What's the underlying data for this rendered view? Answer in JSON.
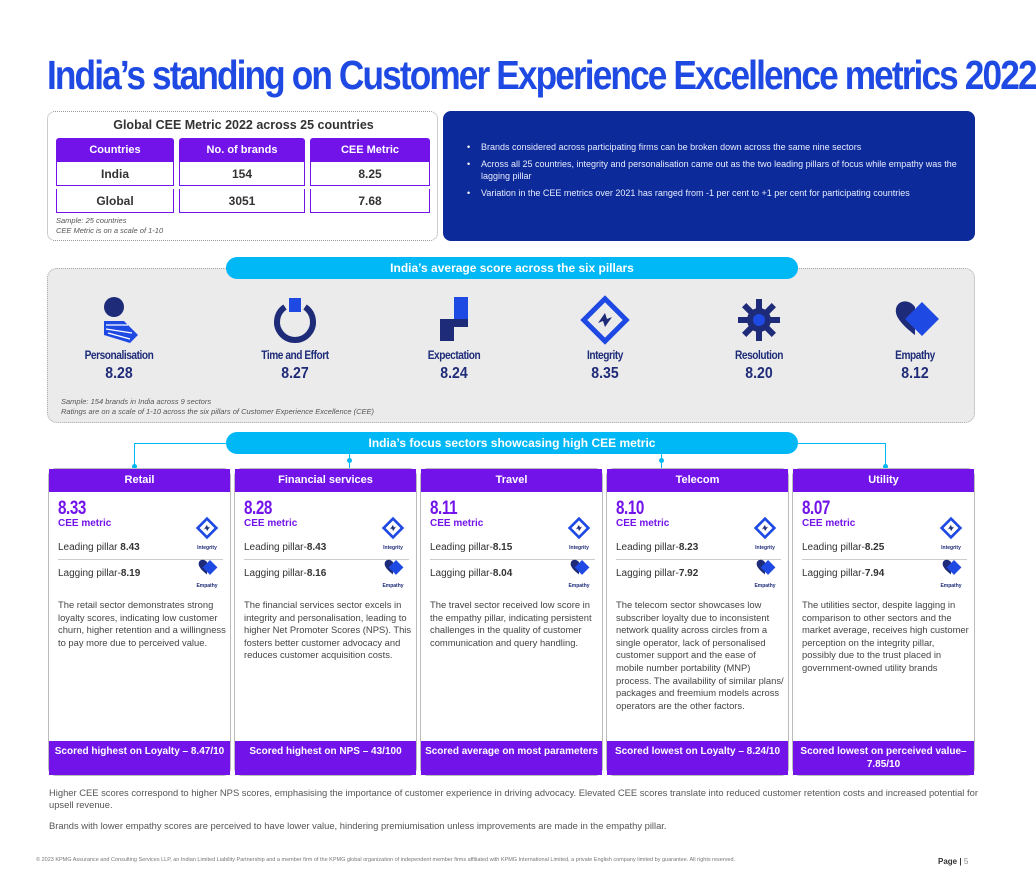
{
  "title": "India’s standing on Customer Experience Excellence metrics 2022",
  "global_table": {
    "title": "Global CEE Metric 2022 across 25 countries",
    "headers": [
      "Countries",
      "No. of brands",
      "CEE Metric"
    ],
    "rows": [
      [
        "India",
        "154",
        "8.25"
      ],
      [
        "Global",
        "3051",
        "7.68"
      ]
    ],
    "note_line1": "Sample: 25 countries",
    "note_line2": "CEE Metric is on a scale of 1-10"
  },
  "bullets": [
    "Brands considered across participating firms can be broken down across the same nine sectors",
    "Across all 25 countries, integrity and personalisation came out as the two leading pillars of focus while empathy was the lagging pillar",
    "Variation in the CEE metrics over 2021 has ranged from -1 per cent to +1 per cent for participating countries"
  ],
  "pillars_section": {
    "header": "India’s average score across the six pillars",
    "pillars": [
      {
        "name": "Personalisation",
        "value": "8.28",
        "icon": "personalisation-icon"
      },
      {
        "name": "Time and Effort",
        "value": "8.27",
        "icon": "time-effort-icon"
      },
      {
        "name": "Expectation",
        "value": "8.24",
        "icon": "expectation-icon"
      },
      {
        "name": "Integrity",
        "value": "8.35",
        "icon": "integrity-icon"
      },
      {
        "name": "Resolution",
        "value": "8.20",
        "icon": "resolution-icon"
      },
      {
        "name": "Empathy",
        "value": "8.12",
        "icon": "empathy-icon"
      }
    ],
    "note_line1": "Sample: 154 brands in India across 9 sectors",
    "note_line2": "Ratings are on a scale of 1-10 across the six pillars of Customer Experience Excellence (CEE)"
  },
  "sectors_section": {
    "header": "India’s focus sectors showcasing high CEE metric",
    "cee_label": "CEE metric",
    "integrity_mini": "Integrity",
    "empathy_mini": "Empathy",
    "sectors": [
      {
        "name": "Retail",
        "score": "8.33",
        "lead_label": "Leading pillar ",
        "lead_value": "8.43",
        "lag_label": "Lagging pillar-",
        "lag_value": "8.19",
        "text": "The retail sector demonstrates strong loyalty scores, indicating low customer churn, higher retention and a willingness to pay more due to perceived value.",
        "footer": "Scored highest on Loyalty – 8.47/10"
      },
      {
        "name": "Financial services",
        "score": "8.28",
        "lead_label": "Leading pillar-",
        "lead_value": "8.43",
        "lag_label": "Lagging pillar-",
        "lag_value": "8.16",
        "text": "The financial services sector excels in integrity and personalisation, leading to higher Net Promoter Scores (NPS). This fosters better customer advocacy and reduces customer acquisition costs.",
        "footer": "Scored highest on NPS – 43/100"
      },
      {
        "name": "Travel",
        "score": "8.11",
        "lead_label": "Leading pillar-",
        "lead_value": "8.15",
        "lag_label": "Lagging pillar-",
        "lag_value": "8.04",
        "text": "The travel sector received low score in the empathy pillar, indicating persistent challenges in the quality of customer communication and query handling.",
        "footer": "Scored average on most parameters"
      },
      {
        "name": "Telecom",
        "score": "8.10",
        "lead_label": "Leading pillar-",
        "lead_value": "8.23",
        "lag_label": "Lagging pillar-",
        "lag_value": "7.92",
        "text": "The telecom sector showcases low subscriber loyalty due to inconsistent network quality across circles from a single operator, lack of personalised customer support and the ease of mobile number portability (MNP) process. The availability of similar plans/ packages and freemium models across operators are the other factors.",
        "footer": "Scored lowest on Loyalty – 8.24/10"
      },
      {
        "name": "Utility",
        "score": "8.07",
        "lead_label": "Leading pillar-",
        "lead_value": "8.25",
        "lag_label": "Lagging pillar-",
        "lag_value": "7.94",
        "text": "The utilities sector, despite lagging in comparison to other sectors and the market average, receives high customer perception on the integrity pillar, possibly due to the trust placed in government-owned utility brands",
        "footer": "Scored lowest on perceived value– 7.85/10"
      }
    ]
  },
  "paragraph1": "Higher CEE scores correspond to higher NPS scores, emphasising the importance of customer experience in driving advocacy. Elevated CEE scores translate into reduced customer retention costs and increased potential for upsell revenue.",
  "paragraph2": "Brands with lower empathy scores are perceived to have lower value, hindering premiumisation unless improvements are made in the empathy pillar.",
  "footer_legal": "© 2023 KPMG Assurance and Consulting Services LLP, an Indian Limited Liability Partnership and a member firm of the KPMG global organization of independent member firms affiliated with KPMG International Limited, a private English company limited by guarantee. All rights reserved.",
  "page_label": "Page",
  "page_number": "5",
  "colors": {
    "title_blue": "#1e49e2",
    "purple": "#7213ea",
    "navy": "#0c2a99",
    "cyan": "#00b8f5",
    "icon_navy": "#1e2b78",
    "icon_blue": "#1e49e2"
  }
}
